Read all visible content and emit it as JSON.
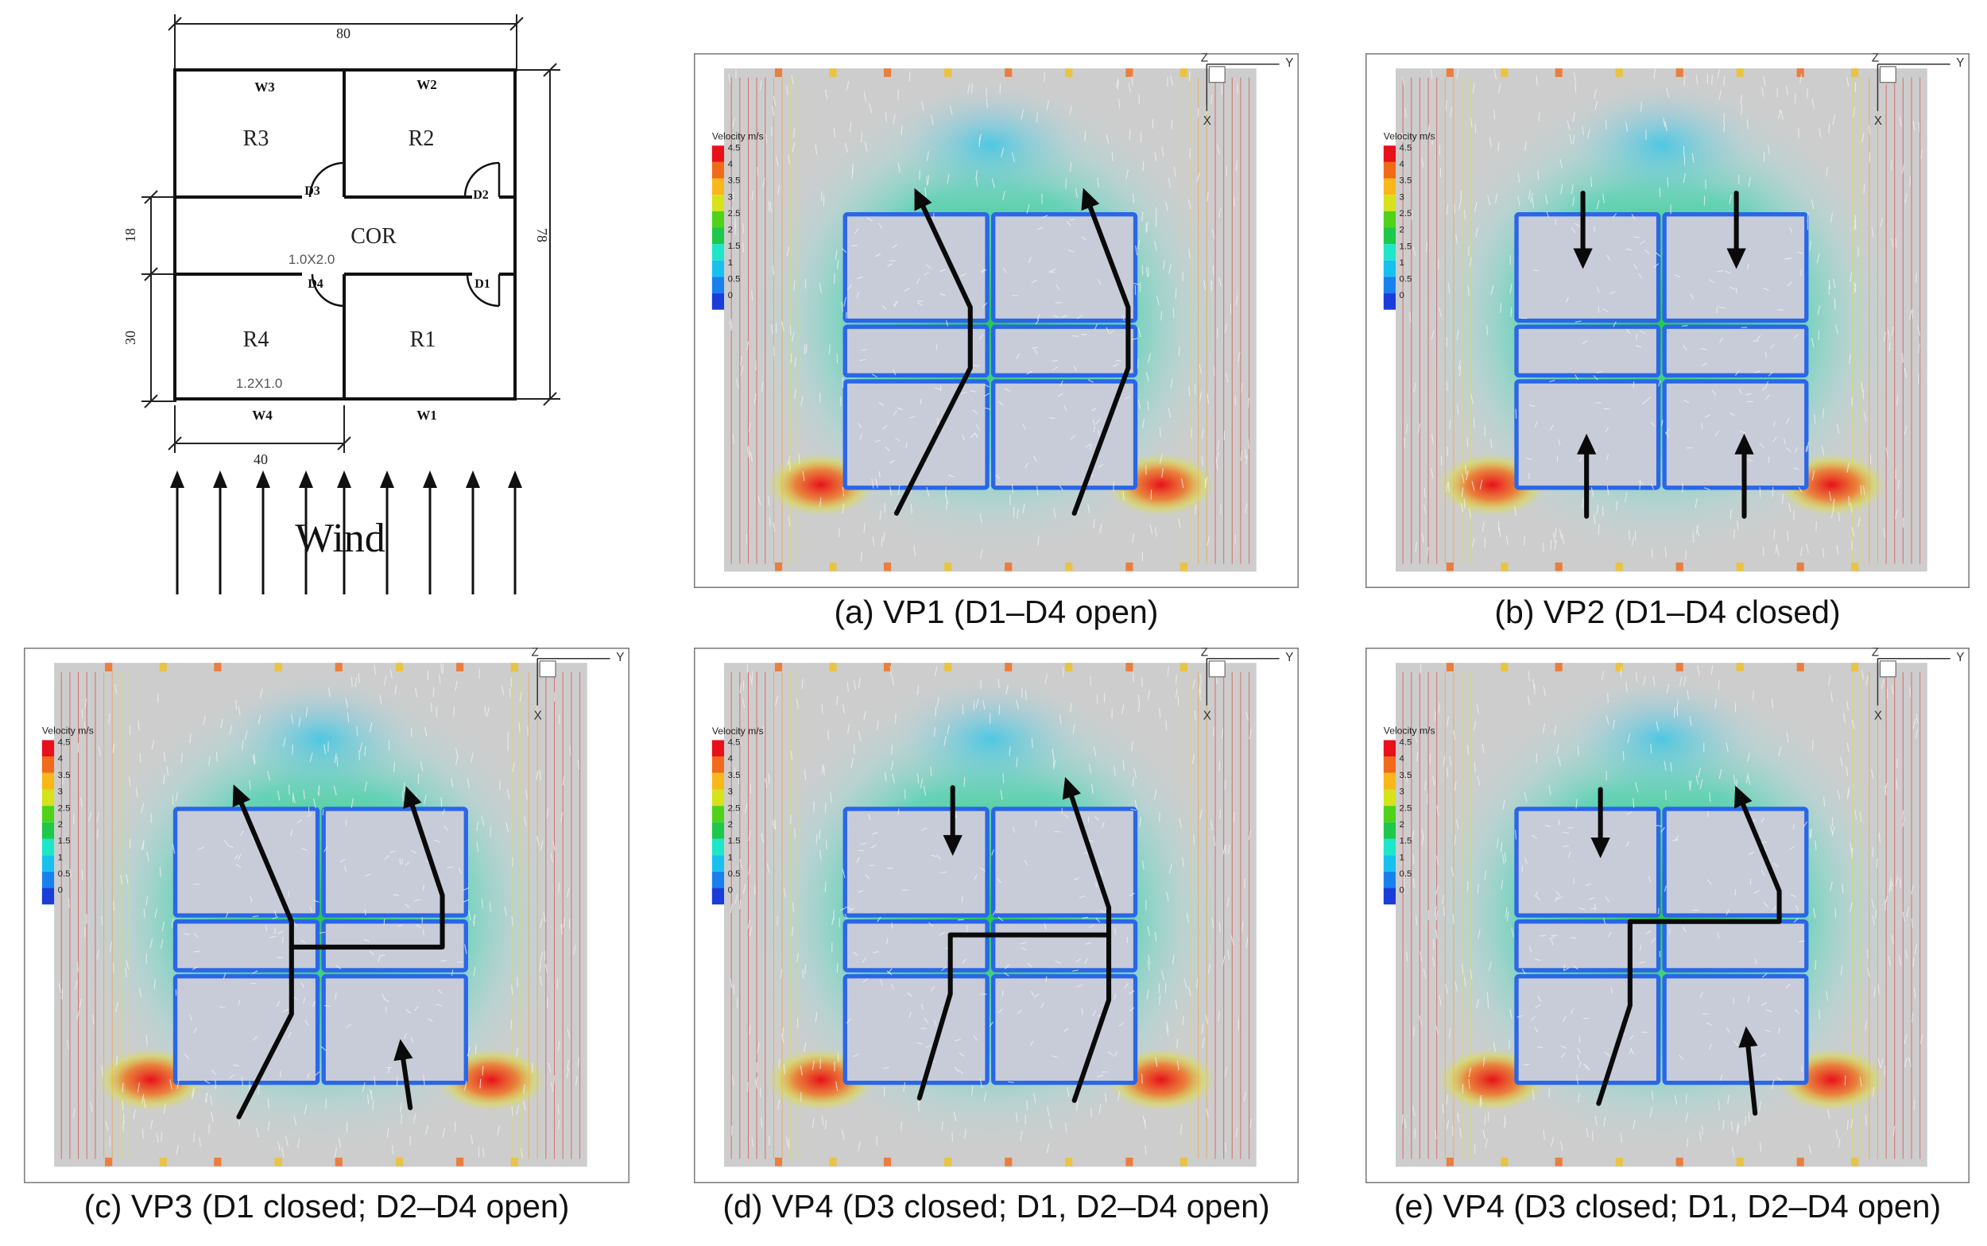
{
  "floorplan": {
    "dim_top": "80",
    "dim_right": "78",
    "dim_left_upper": "18",
    "dim_left_lower": "30",
    "dim_bottom": "40",
    "windows": [
      "W3",
      "W2",
      "W4",
      "W1"
    ],
    "rooms": [
      "R3",
      "R2",
      "R4",
      "R1"
    ],
    "corridor": "COR",
    "doors": [
      "D3",
      "D2",
      "D4",
      "D1"
    ],
    "door_size": "1.0X2.0",
    "window_size": "1.2X1.0",
    "wind_label": "Wind"
  },
  "legend": {
    "title": "Velocity m/s",
    "ticks": [
      "4.5",
      "4",
      "3.5",
      "3",
      "2.5",
      "2",
      "1.5",
      "1",
      "0.5",
      "0"
    ],
    "colors": [
      "#e8101a",
      "#f06a1a",
      "#f8b81a",
      "#d6e21a",
      "#4fd21a",
      "#1ec84a",
      "#1ee6c8",
      "#18c0ee",
      "#1a80ee",
      "#1a3cd8"
    ]
  },
  "axis": {
    "z": "Z",
    "y": "Y",
    "x": "X"
  },
  "panels": [
    {
      "caption": "(a) VP1 (D1–D4 open)"
    },
    {
      "caption": "(b) VP2 (D1–D4 closed)"
    },
    {
      "caption": "(c) VP3 (D1 closed; D2–D4 open)"
    },
    {
      "caption": "(d) VP4 (D3 closed; D1, D2–D4 open)"
    },
    {
      "caption": "(e) VP4 (D3 closed; D1, D2–D4 open)"
    }
  ]
}
